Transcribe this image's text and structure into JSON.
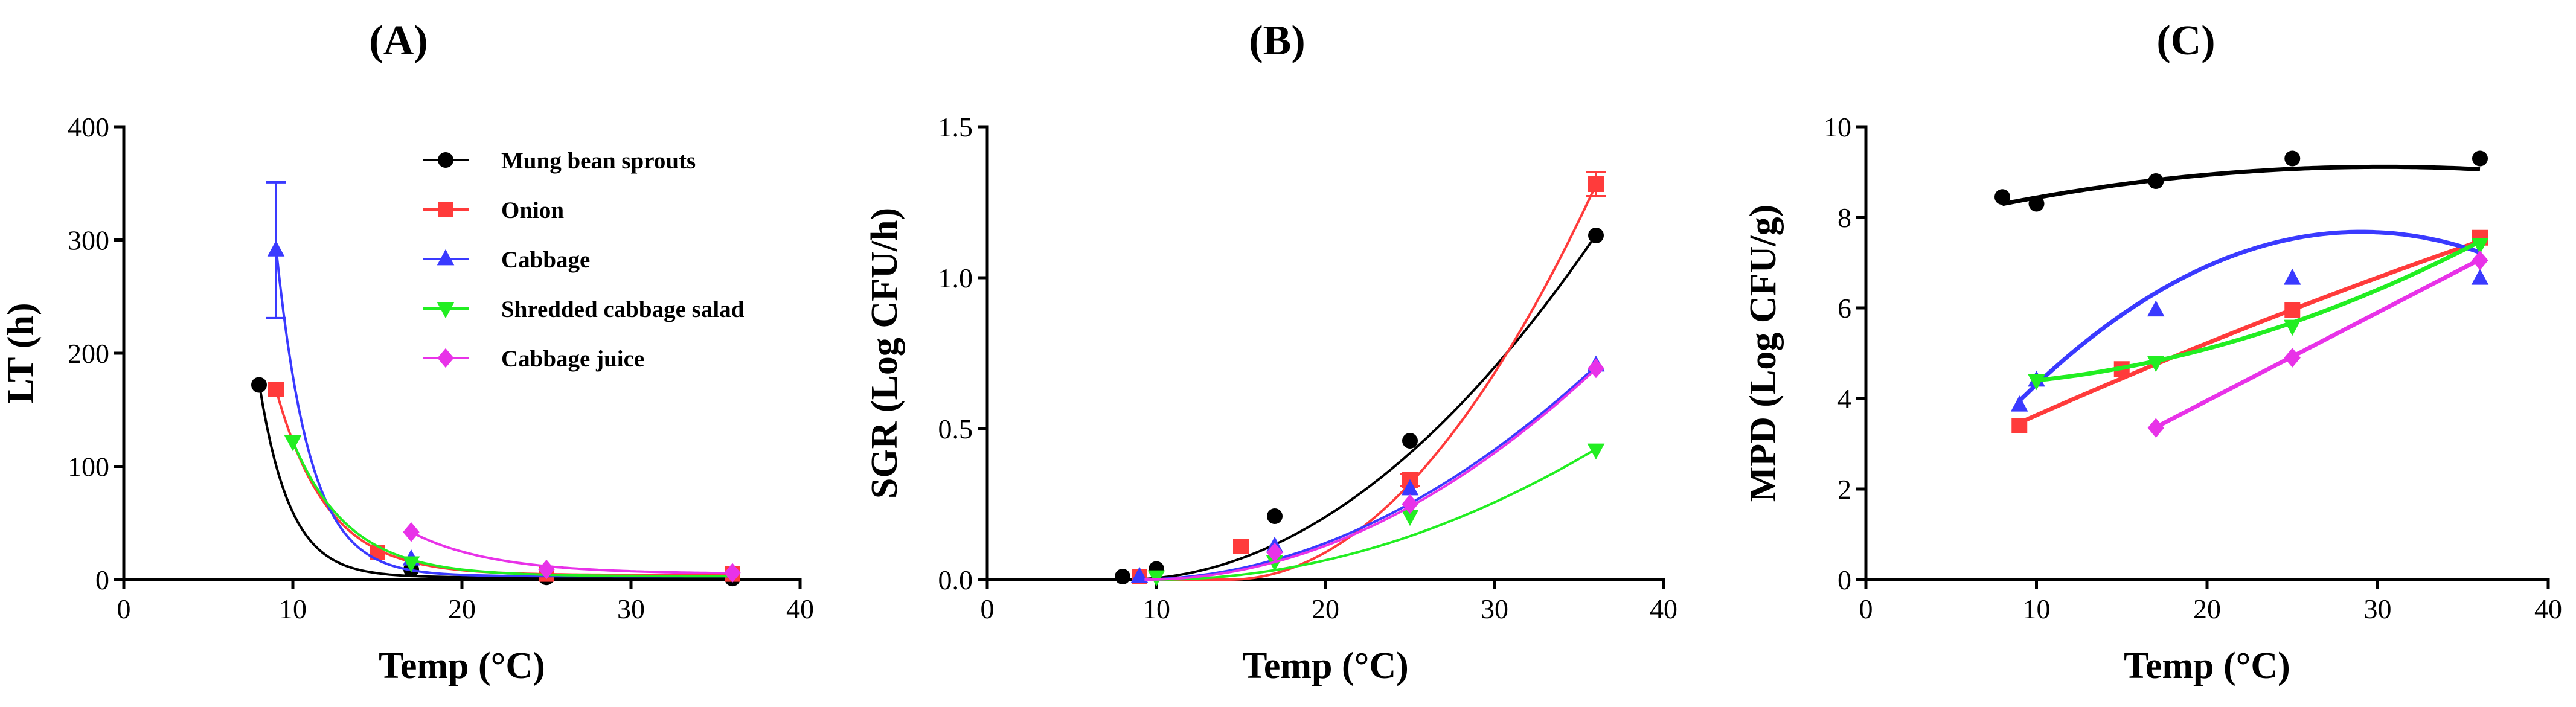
{
  "chart_data": [
    {
      "id": "A",
      "type": "scatter",
      "title": "(A)",
      "xlabel": "Temp (°C)",
      "ylabel": "LT (h)",
      "xlim": [
        0,
        40
      ],
      "ylim": [
        0,
        400
      ],
      "xticks": [
        0,
        10,
        20,
        30,
        40
      ],
      "yticks": [
        0,
        100,
        200,
        300,
        400
      ],
      "legend_position": "top-right",
      "series": [
        {
          "name": "Mung bean sprouts",
          "color": "#000000",
          "marker": "circle",
          "x": [
            8,
            17,
            25,
            36
          ],
          "y": [
            172,
            9,
            2,
            1
          ],
          "fit": {
            "type": "exp",
            "a": 172,
            "b": 0.55,
            "c": 2,
            "x0": 8
          }
        },
        {
          "name": "Onion",
          "color": "#ff3b3b",
          "marker": "square",
          "x": [
            9,
            15,
            25,
            36
          ],
          "y": [
            168,
            24,
            5,
            5
          ],
          "fit": {
            "type": "exp",
            "a": 164,
            "b": 0.33,
            "c": 4,
            "x0": 9
          }
        },
        {
          "name": "Cabbage",
          "color": "#3a3aff",
          "marker": "triangle-up",
          "x": [
            9,
            17
          ],
          "y": [
            291,
            18
          ],
          "err": [
            60,
            0
          ],
          "fit": {
            "type": "exp",
            "a": 291,
            "b": 0.5,
            "c": 3,
            "x0": 9
          }
        },
        {
          "name": "Shredded cabbage salad",
          "color": "#22ee22",
          "marker": "triangle-down",
          "x": [
            10,
            17
          ],
          "y": [
            122,
            15
          ],
          "fit": {
            "type": "exp",
            "a": 119,
            "b": 0.3,
            "c": 3,
            "x0": 10
          }
        },
        {
          "name": "Cabbage juice",
          "color": "#e832e8",
          "marker": "diamond",
          "x": [
            17,
            25,
            36
          ],
          "y": [
            42,
            9,
            6
          ],
          "fit": {
            "type": "exp",
            "a": 37,
            "b": 0.21,
            "c": 5,
            "x0": 17
          }
        }
      ]
    },
    {
      "id": "B",
      "type": "scatter",
      "title": "(B)",
      "xlabel": "Temp (°C)",
      "ylabel": "SGR (Log CFU/h)",
      "xlim": [
        0,
        40
      ],
      "ylim": [
        0,
        1.5
      ],
      "xticks": [
        0,
        10,
        20,
        30,
        40
      ],
      "yticks": [
        0.0,
        0.5,
        1.0,
        1.5
      ],
      "series": [
        {
          "name": "Mung bean sprouts",
          "color": "#000000",
          "marker": "circle",
          "x": [
            8,
            10,
            17,
            25,
            36
          ],
          "y": [
            0.01,
            0.035,
            0.21,
            0.46,
            1.14
          ],
          "fit": {
            "type": "ratkowsky",
            "b": 0.0383,
            "tmin": 8.1
          }
        },
        {
          "name": "Onion",
          "color": "#ff3b3b",
          "marker": "square",
          "x": [
            9,
            15,
            25,
            36
          ],
          "y": [
            0.01,
            0.11,
            0.33,
            1.31
          ],
          "err": [
            0,
            0,
            0.02,
            0.04
          ],
          "fit": {
            "type": "ratkowsky",
            "b": 0.0527,
            "tmin": 14.3
          }
        },
        {
          "name": "Cabbage",
          "color": "#3a3aff",
          "marker": "triangle-up",
          "x": [
            9,
            17,
            25,
            36
          ],
          "y": [
            0.01,
            0.11,
            0.3,
            0.71
          ],
          "fit": {
            "type": "ratkowsky",
            "b": 0.0308,
            "tmin": 8.7
          }
        },
        {
          "name": "Shredded cabbage salad",
          "color": "#22ee22",
          "marker": "triangle-down",
          "x": [
            10,
            17,
            25,
            36
          ],
          "y": [
            0.01,
            0.06,
            0.21,
            0.43
          ],
          "fit": {
            "type": "ratkowsky",
            "b": 0.0253,
            "tmin": 10
          }
        },
        {
          "name": "Cabbage juice",
          "color": "#e832e8",
          "marker": "diamond",
          "x": [
            17,
            25,
            36
          ],
          "y": [
            0.09,
            0.25,
            0.7
          ],
          "fit": {
            "type": "ratkowsky",
            "b": 0.0313,
            "tmin": 9.3
          }
        }
      ]
    },
    {
      "id": "C",
      "type": "scatter",
      "title": "(C)",
      "xlabel": "Temp (°C)",
      "ylabel": "MPD (Log CFU/g)",
      "xlim": [
        0,
        40
      ],
      "ylim": [
        0,
        10
      ],
      "xticks": [
        0,
        10,
        20,
        30,
        40
      ],
      "yticks": [
        0,
        2,
        4,
        6,
        8,
        10
      ],
      "series": [
        {
          "name": "Mung bean sprouts",
          "color": "#000000",
          "marker": "circle",
          "x": [
            8,
            10,
            17,
            25,
            36
          ],
          "y": [
            8.45,
            8.3,
            8.8,
            9.3,
            9.3
          ],
          "fit": {
            "type": "poly",
            "coef": [
              7.6,
              0.1,
              -0.00165
            ],
            "xmin": 8,
            "xmax": 36
          }
        },
        {
          "name": "Onion",
          "color": "#ff3b3b",
          "marker": "square",
          "x": [
            9,
            15,
            25,
            36
          ],
          "y": [
            3.4,
            4.65,
            5.95,
            7.55
          ],
          "fit": {
            "type": "poly",
            "coef": [
              1.9,
              0.18,
              -0.0007
            ],
            "xmin": 9,
            "xmax": 36
          }
        },
        {
          "name": "Cabbage",
          "color": "#3a3aff",
          "marker": "triangle-up",
          "x": [
            9,
            10,
            17,
            25,
            36
          ],
          "y": [
            3.85,
            4.4,
            5.95,
            6.65,
            6.65
          ],
          "fit": {
            "type": "poly",
            "coef": [
              -0.16,
              0.54,
              -0.0093
            ],
            "xmin": 9,
            "xmax": 36
          }
        },
        {
          "name": "Shredded cabbage salad",
          "color": "#22ee22",
          "marker": "triangle-down",
          "x": [
            10,
            17,
            25,
            36
          ],
          "y": [
            4.4,
            4.8,
            5.6,
            7.4
          ],
          "fit": {
            "type": "poly",
            "coef": [
              4.3,
              -0.02,
              0.003
            ],
            "xmin": 10,
            "xmax": 36
          }
        },
        {
          "name": "Cabbage juice",
          "color": "#e832e8",
          "marker": "diamond",
          "x": [
            17,
            25,
            36
          ],
          "y": [
            3.35,
            4.9,
            7.05
          ],
          "fit": {
            "type": "poly",
            "coef": [
              0.05,
              0.195,
              0
            ],
            "xmin": 17,
            "xmax": 36
          }
        }
      ]
    }
  ]
}
